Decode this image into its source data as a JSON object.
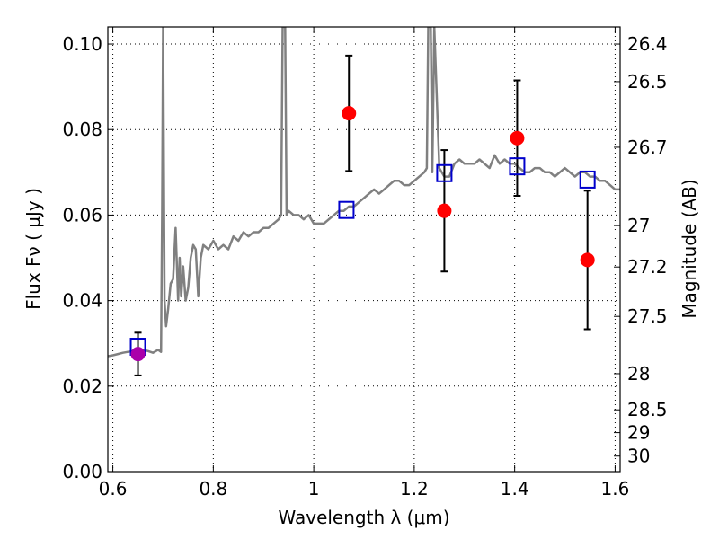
{
  "chart_data": {
    "type": "scatter",
    "xlabel": "Wavelength  λ (μm)",
    "ylabel": "Flux  Fν  ( μJy )",
    "y2label": "Magnitude (AB)",
    "xlim": [
      0.59,
      1.61
    ],
    "ylim": [
      0.0,
      0.104
    ],
    "grid": true,
    "x_ticks": [
      0.6,
      0.8,
      1.0,
      1.2,
      1.4,
      1.6
    ],
    "x_tick_labels": [
      "0.6",
      "0.8",
      "1",
      "1.2",
      "1.4",
      "1.6"
    ],
    "y_ticks": [
      0.0,
      0.02,
      0.04,
      0.06,
      0.08,
      0.1
    ],
    "y_tick_labels": [
      "0.00",
      "0.02",
      "0.04",
      "0.06",
      "0.08",
      "0.10"
    ],
    "y2_ticks": [
      {
        "label": "26.4",
        "mag": 26.4
      },
      {
        "label": "26.5",
        "mag": 26.5
      },
      {
        "label": "26.7",
        "mag": 26.7
      },
      {
        "label": "27",
        "mag": 27.0
      },
      {
        "label": "27.2",
        "mag": 27.2
      },
      {
        "label": "27.5",
        "mag": 27.5
      },
      {
        "label": "28",
        "mag": 28.0
      },
      {
        "label": "28.5",
        "mag": 28.5
      },
      {
        "label": "29",
        "mag": 29.0
      },
      {
        "label": "30",
        "mag": 30.0
      }
    ],
    "colors": {
      "spectrum": "#808080",
      "observed": "#ff0000",
      "observed_optical": "#aa00aa",
      "model": "#0000cc",
      "errorbar": "#000000"
    },
    "series": [
      {
        "kind": "line",
        "x": [
          0.59,
          0.6,
          0.61,
          0.62,
          0.63,
          0.64,
          0.65,
          0.66,
          0.67,
          0.68,
          0.69,
          0.696,
          0.698,
          0.7,
          0.703,
          0.706,
          0.71,
          0.715,
          0.72,
          0.725,
          0.73,
          0.733,
          0.736,
          0.74,
          0.745,
          0.75,
          0.755,
          0.76,
          0.765,
          0.77,
          0.775,
          0.78,
          0.79,
          0.8,
          0.81,
          0.82,
          0.83,
          0.84,
          0.85,
          0.86,
          0.87,
          0.88,
          0.89,
          0.9,
          0.91,
          0.92,
          0.93,
          0.935,
          0.938,
          0.94,
          0.943,
          0.946,
          0.95,
          0.96,
          0.97,
          0.98,
          0.99,
          1.0,
          1.01,
          1.02,
          1.03,
          1.04,
          1.05,
          1.06,
          1.07,
          1.08,
          1.09,
          1.1,
          1.11,
          1.12,
          1.13,
          1.14,
          1.15,
          1.16,
          1.17,
          1.18,
          1.19,
          1.2,
          1.21,
          1.22,
          1.225,
          1.228,
          1.23,
          1.233,
          1.236,
          1.24,
          1.25,
          1.26,
          1.27,
          1.28,
          1.29,
          1.3,
          1.31,
          1.32,
          1.33,
          1.34,
          1.35,
          1.36,
          1.37,
          1.38,
          1.39,
          1.4,
          1.41,
          1.42,
          1.43,
          1.44,
          1.45,
          1.46,
          1.47,
          1.48,
          1.49,
          1.5,
          1.51,
          1.52,
          1.53,
          1.54,
          1.55,
          1.56,
          1.57,
          1.58,
          1.59,
          1.6,
          1.61
        ],
        "y": [
          0.027,
          0.0272,
          0.0275,
          0.0278,
          0.028,
          0.0282,
          0.0283,
          0.0285,
          0.0282,
          0.0278,
          0.0285,
          0.028,
          0.06,
          0.104,
          0.04,
          0.034,
          0.038,
          0.044,
          0.045,
          0.057,
          0.04,
          0.05,
          0.041,
          0.048,
          0.04,
          0.043,
          0.05,
          0.053,
          0.052,
          0.041,
          0.05,
          0.053,
          0.052,
          0.054,
          0.052,
          0.053,
          0.052,
          0.055,
          0.054,
          0.056,
          0.055,
          0.056,
          0.056,
          0.057,
          0.057,
          0.058,
          0.059,
          0.06,
          0.104,
          0.104,
          0.104,
          0.06,
          0.061,
          0.06,
          0.06,
          0.059,
          0.06,
          0.058,
          0.058,
          0.058,
          0.059,
          0.06,
          0.061,
          0.061,
          0.062,
          0.062,
          0.063,
          0.064,
          0.065,
          0.066,
          0.065,
          0.066,
          0.067,
          0.068,
          0.068,
          0.067,
          0.067,
          0.068,
          0.069,
          0.07,
          0.071,
          0.104,
          0.104,
          0.104,
          0.07,
          0.104,
          0.071,
          0.069,
          0.069,
          0.072,
          0.073,
          0.072,
          0.072,
          0.072,
          0.073,
          0.072,
          0.071,
          0.074,
          0.072,
          0.073,
          0.072,
          0.072,
          0.071,
          0.07,
          0.07,
          0.071,
          0.071,
          0.07,
          0.07,
          0.069,
          0.07,
          0.071,
          0.07,
          0.069,
          0.07,
          0.07,
          0.069,
          0.069,
          0.068,
          0.068,
          0.067,
          0.066,
          0.066
        ]
      },
      {
        "kind": "model-squares",
        "x": [
          0.65,
          1.065,
          1.26,
          1.405,
          1.545
        ],
        "y": [
          0.0292,
          0.0612,
          0.0698,
          0.0714,
          0.0683
        ]
      },
      {
        "kind": "observed",
        "x": [
          0.65,
          1.07,
          1.26,
          1.405,
          1.545
        ],
        "y": [
          0.0275,
          0.0838,
          0.061,
          0.078,
          0.0495
        ],
        "yerr": [
          0.005,
          0.0135,
          0.0142,
          0.0135,
          0.0162
        ],
        "colors": [
          "#aa00aa",
          "#ff0000",
          "#ff0000",
          "#ff0000",
          "#ff0000"
        ]
      }
    ]
  }
}
